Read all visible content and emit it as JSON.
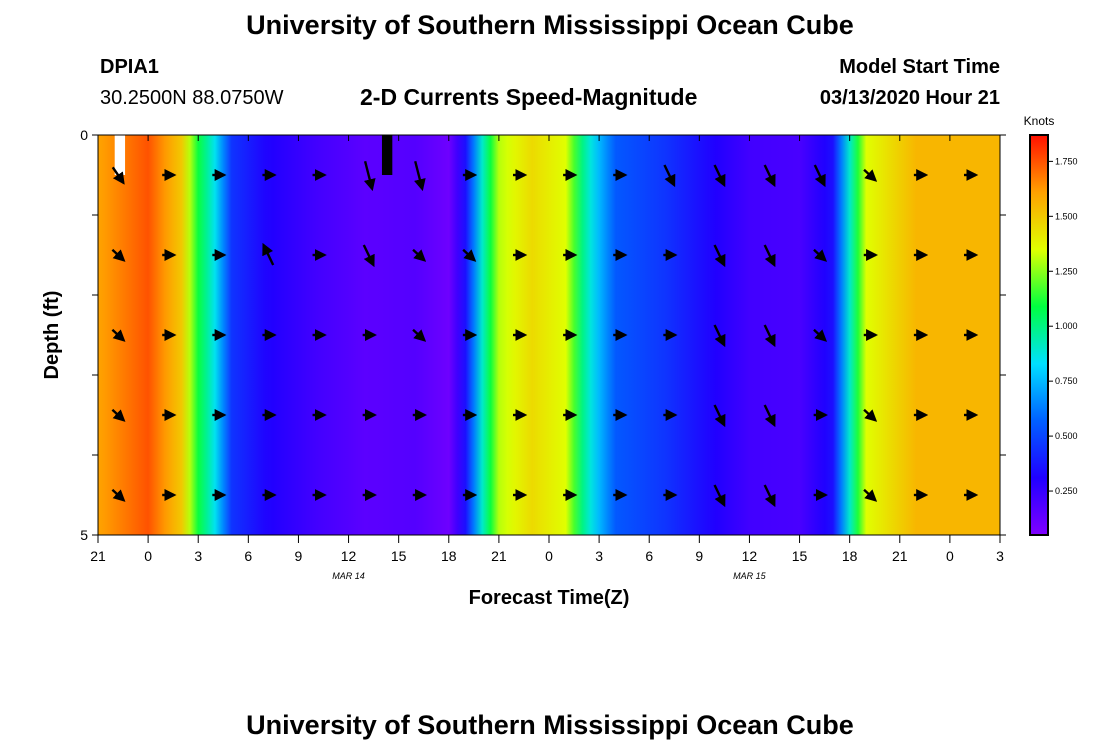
{
  "header": {
    "title": "University of Southern Mississippi Ocean Cube",
    "station_id": "DPIA1",
    "station_coords": "30.2500N 88.0750W",
    "chart_title": "2-D Currents Speed-Magnitude",
    "model_label": "Model Start Time",
    "model_time": "03/13/2020 Hour 21"
  },
  "footer": {
    "title": "University of Southern Mississippi Ocean Cube"
  },
  "colors": {
    "scale": [
      "#8000ff",
      "#2000ff",
      "#0060ff",
      "#00e0ff",
      "#00ff40",
      "#e0ff00",
      "#ffa000",
      "#ff1000"
    ],
    "arrow": "#000000",
    "missing": "#ffffff"
  },
  "chart_data": {
    "type": "heatmap",
    "xlabel": "Forecast Time(Z)",
    "ylabel": "Depth (ft)",
    "x_tick_labels": [
      "21",
      "0",
      "3",
      "6",
      "9",
      "12",
      "15",
      "18",
      "21",
      "0",
      "3",
      "6",
      "9",
      "12",
      "15",
      "18",
      "21",
      "0",
      "3"
    ],
    "date_labels": [
      {
        "label": "MAR 14",
        "hour_index": 15
      },
      {
        "label": "MAR 15",
        "hour_index": 39
      }
    ],
    "y_tick_labels": [
      "0",
      "5"
    ],
    "ylim": [
      0,
      5
    ],
    "hours_total": 54,
    "depth_layers": 5,
    "colorbar": {
      "unit": "Knots",
      "min": 0.05,
      "max": 1.87,
      "tick_labels": [
        "1.750",
        "1.500",
        "1.250",
        "1.000",
        "0.750",
        "0.500",
        "0.250"
      ],
      "tick_values": [
        1.75,
        1.5,
        1.25,
        1.0,
        0.75,
        0.5,
        0.25
      ]
    },
    "speed_profile_knots": [
      {
        "hour": 0,
        "speed": 1.6
      },
      {
        "hour": 3,
        "speed": 1.75
      },
      {
        "hour": 5,
        "speed": 1.5
      },
      {
        "hour": 6,
        "speed": 1.1
      },
      {
        "hour": 7,
        "speed": 0.85
      },
      {
        "hour": 8,
        "speed": 0.45
      },
      {
        "hour": 10,
        "speed": 0.32
      },
      {
        "hour": 13,
        "speed": 0.22
      },
      {
        "hour": 16,
        "speed": 0.15
      },
      {
        "hour": 19,
        "speed": 0.17
      },
      {
        "hour": 21,
        "speed": 0.1
      },
      {
        "hour": 22,
        "speed": 0.35
      },
      {
        "hour": 23,
        "speed": 0.9
      },
      {
        "hour": 24,
        "speed": 1.3
      },
      {
        "hour": 26,
        "speed": 1.45
      },
      {
        "hour": 28,
        "speed": 1.35
      },
      {
        "hour": 29,
        "speed": 1.0
      },
      {
        "hour": 30,
        "speed": 0.75
      },
      {
        "hour": 31,
        "speed": 0.55
      },
      {
        "hour": 34,
        "speed": 0.45
      },
      {
        "hour": 36,
        "speed": 0.35
      },
      {
        "hour": 39,
        "speed": 0.22
      },
      {
        "hour": 42,
        "speed": 0.2
      },
      {
        "hour": 44,
        "speed": 0.35
      },
      {
        "hour": 45,
        "speed": 0.9
      },
      {
        "hour": 46,
        "speed": 1.35
      },
      {
        "hour": 49,
        "speed": 1.55
      },
      {
        "hour": 54,
        "speed": 1.55
      }
    ],
    "missing_cells": [
      {
        "hour": 1,
        "layer": 0,
        "color": "#ffffff"
      },
      {
        "hour": 17,
        "layer": 0,
        "color": "#000000"
      }
    ],
    "arrow_grid": [
      [
        [
          1,
          0.35
        ],
        [
          0,
          0.5
        ],
        [
          0,
          0.5
        ],
        [
          0,
          0.0
        ],
        [
          0,
          0.0
        ],
        [
          0,
          0.2
        ],
        [
          0,
          0.2
        ],
        [
          0,
          0.5
        ],
        [
          0,
          0.5
        ],
        [
          0,
          0.5
        ],
        [
          0,
          0.5
        ],
        [
          0,
          0.3
        ],
        [
          0,
          0.3
        ],
        [
          0,
          0.3
        ],
        [
          0,
          0.3
        ],
        [
          0,
          0.4
        ],
        [
          0,
          0.5
        ],
        [
          0,
          0.5
        ]
      ],
      [
        [
          0,
          0.4
        ],
        [
          0,
          0.5
        ],
        [
          0,
          0.5
        ],
        [
          0,
          -0.7
        ],
        [
          0,
          0.0
        ],
        [
          0,
          0.3
        ],
        [
          0,
          0.4
        ],
        [
          0,
          0.4
        ],
        [
          0,
          0.5
        ],
        [
          0,
          0.5
        ],
        [
          0,
          0.5
        ],
        [
          0,
          0.0
        ],
        [
          0,
          0.3
        ],
        [
          0,
          0.3
        ],
        [
          0,
          0.4
        ],
        [
          0,
          0.5
        ],
        [
          0,
          0.5
        ],
        [
          0,
          0.5
        ]
      ],
      [
        [
          0,
          0.4
        ],
        [
          0,
          0.5
        ],
        [
          0,
          0.5
        ],
        [
          0,
          0.0
        ],
        [
          0,
          0.0
        ],
        [
          0,
          0.5
        ],
        [
          0,
          0.4
        ],
        [
          0,
          0.5
        ],
        [
          0,
          0.5
        ],
        [
          0,
          0.5
        ],
        [
          0,
          0.5
        ],
        [
          0,
          0.0
        ],
        [
          0,
          0.3
        ],
        [
          0,
          0.3
        ],
        [
          0,
          0.4
        ],
        [
          0,
          0.5
        ],
        [
          0,
          0.5
        ],
        [
          0,
          0.5
        ]
      ],
      [
        [
          0,
          0.4
        ],
        [
          0,
          0.5
        ],
        [
          0,
          0.5
        ],
        [
          0,
          0.0
        ],
        [
          0,
          0.0
        ],
        [
          0,
          0.5
        ],
        [
          0,
          0.0
        ],
        [
          0,
          0.0
        ],
        [
          0,
          0.5
        ],
        [
          0,
          0.5
        ],
        [
          0,
          0.5
        ],
        [
          0,
          0.0
        ],
        [
          0,
          0.3
        ],
        [
          0,
          0.3
        ],
        [
          0,
          0.0
        ],
        [
          0,
          0.4
        ],
        [
          0,
          0.5
        ],
        [
          0,
          0.5
        ]
      ],
      [
        [
          0,
          0.4
        ],
        [
          0,
          0.5
        ],
        [
          0,
          0.5
        ],
        [
          0,
          0.0
        ],
        [
          0,
          0.0
        ],
        [
          0,
          0.5
        ],
        [
          0,
          0.0
        ],
        [
          0,
          0.0
        ],
        [
          0,
          0.5
        ],
        [
          0,
          0.5
        ],
        [
          0,
          0.5
        ],
        [
          0,
          0.0
        ],
        [
          0,
          0.3
        ],
        [
          0,
          0.3
        ],
        [
          0,
          0.0
        ],
        [
          0,
          0.4
        ],
        [
          0,
          0.5
        ],
        [
          0,
          0.5
        ]
      ]
    ]
  }
}
